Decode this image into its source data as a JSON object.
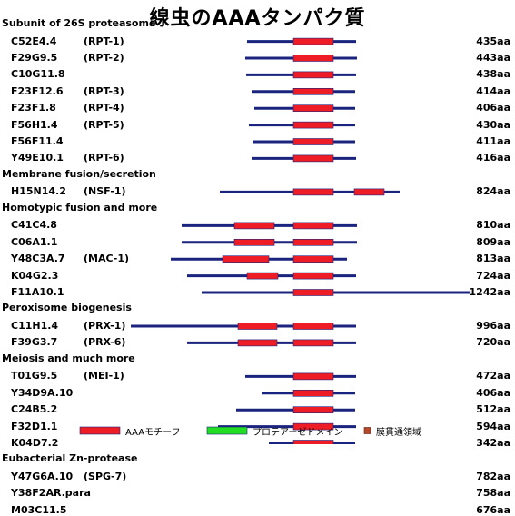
{
  "title": "線虫のAAAタンパク質",
  "colors": {
    "backbone": "#1a237e",
    "aaa": "#ee1c24",
    "protease": "#22dd22",
    "tm": "#b5482a"
  },
  "sections": [
    {
      "label": "Subunit of 26S proteasome",
      "proteins": [
        {
          "gene": "C52E4.4",
          "alias": "(RPT-1)",
          "length": "435aa",
          "start": 272,
          "end": 392,
          "domains": [
            {
              "type": "aaa",
              "from": 323,
              "to": 367
            }
          ]
        },
        {
          "gene": "F29G9.5",
          "alias": "(RPT-2)",
          "length": "443aa",
          "start": 270,
          "end": 393,
          "domains": [
            {
              "type": "aaa",
              "from": 323,
              "to": 367
            }
          ]
        },
        {
          "gene": "C10G11.8",
          "alias": "",
          "length": "438aa",
          "start": 271,
          "end": 392,
          "domains": [
            {
              "type": "aaa",
              "from": 323,
              "to": 367
            }
          ]
        },
        {
          "gene": "F23F12.6",
          "alias": "(RPT-3)",
          "length": "414aa",
          "start": 277,
          "end": 391,
          "domains": [
            {
              "type": "aaa",
              "from": 323,
              "to": 367
            }
          ]
        },
        {
          "gene": "F23F1.8",
          "alias": "(RPT-4)",
          "length": "406aa",
          "start": 280,
          "end": 391,
          "domains": [
            {
              "type": "aaa",
              "from": 323,
              "to": 367
            }
          ]
        },
        {
          "gene": "F56H1.4",
          "alias": "(RPT-5)",
          "length": "430aa",
          "start": 274,
          "end": 391,
          "domains": [
            {
              "type": "aaa",
              "from": 323,
              "to": 367
            }
          ]
        },
        {
          "gene": "F56F11.4",
          "alias": "",
          "length": "411aa",
          "start": 278,
          "end": 391,
          "domains": [
            {
              "type": "aaa",
              "from": 323,
              "to": 367
            }
          ]
        },
        {
          "gene": "Y49E10.1",
          "alias": "(RPT-6)",
          "length": "416aa",
          "start": 277,
          "end": 392,
          "domains": [
            {
              "type": "aaa",
              "from": 323,
              "to": 367
            }
          ]
        }
      ]
    },
    {
      "label": "Membrane fusion/secretion",
      "proteins": [
        {
          "gene": "H15N14.2",
          "alias": "(NSF-1)",
          "length": "824aa",
          "start": 242,
          "end": 440,
          "domains": [
            {
              "type": "aaa",
              "from": 323,
              "to": 367
            },
            {
              "type": "aaa",
              "from": 390,
              "to": 423
            }
          ]
        }
      ]
    },
    {
      "label": "Homotypic fusion and more",
      "proteins": [
        {
          "gene": "C41C4.8",
          "alias": "",
          "length": "810aa",
          "start": 200,
          "end": 393,
          "domains": [
            {
              "type": "aaa",
              "from": 258,
              "to": 302
            },
            {
              "type": "aaa",
              "from": 323,
              "to": 367
            }
          ]
        },
        {
          "gene": "C06A1.1",
          "alias": "",
          "length": "809aa",
          "start": 200,
          "end": 393,
          "domains": [
            {
              "type": "aaa",
              "from": 258,
              "to": 302
            },
            {
              "type": "aaa",
              "from": 323,
              "to": 367
            }
          ]
        },
        {
          "gene": "Y48C3A.7",
          "alias": "(MAC-1)",
          "length": "813aa",
          "start": 188,
          "end": 382,
          "domains": [
            {
              "type": "aaa",
              "from": 245,
              "to": 296
            },
            {
              "type": "aaa",
              "from": 323,
              "to": 367
            }
          ]
        },
        {
          "gene": "K04G2.3",
          "alias": "",
          "length": "724aa",
          "start": 206,
          "end": 392,
          "domains": [
            {
              "type": "aaa",
              "from": 272,
              "to": 306
            },
            {
              "type": "aaa",
              "from": 323,
              "to": 367
            }
          ]
        },
        {
          "gene": "F11A10.1",
          "alias": "",
          "length": "1242aa",
          "start": 222,
          "end": 518,
          "domains": [
            {
              "type": "aaa",
              "from": 323,
              "to": 367
            }
          ]
        }
      ]
    },
    {
      "label": "Peroxisome biogenesis",
      "proteins": [
        {
          "gene": "C11H1.4",
          "alias": "(PRX-1)",
          "length": "996aa",
          "start": 144,
          "end": 392,
          "domains": [
            {
              "type": "aaa",
              "from": 262,
              "to": 305
            },
            {
              "type": "aaa",
              "from": 323,
              "to": 367
            }
          ]
        },
        {
          "gene": "F39G3.7",
          "alias": "(PRX-6)",
          "length": "720aa",
          "start": 206,
          "end": 392,
          "domains": [
            {
              "type": "aaa",
              "from": 262,
              "to": 305
            },
            {
              "type": "aaa",
              "from": 323,
              "to": 367
            }
          ]
        }
      ]
    },
    {
      "label": "Meiosis and much more",
      "proteins": [
        {
          "gene": "T01G9.5",
          "alias": "(MEI-1)",
          "length": "472aa",
          "start": 270,
          "end": 392,
          "domains": [
            {
              "type": "aaa",
              "from": 323,
              "to": 367
            }
          ]
        },
        {
          "gene": "Y34D9A.10",
          "alias": "",
          "length": "406aa",
          "start": 288,
          "end": 391,
          "domains": [
            {
              "type": "aaa",
              "from": 323,
              "to": 367
            }
          ]
        },
        {
          "gene": "C24B5.2",
          "alias": "",
          "length": "512aa",
          "start": 260,
          "end": 391,
          "domains": [
            {
              "type": "aaa",
              "from": 323,
              "to": 367
            }
          ]
        },
        {
          "gene": "F32D1.1",
          "alias": "",
          "length": "594aa",
          "start": 240,
          "end": 392,
          "domains": [
            {
              "type": "aaa",
              "from": 323,
              "to": 367
            }
          ]
        },
        {
          "gene": "K04D7.2",
          "alias": "",
          "length": "342aa",
          "start": 296,
          "end": 391,
          "domains": [
            {
              "type": "aaa",
              "from": 323,
              "to": 367
            }
          ]
        }
      ]
    },
    {
      "label": "Eubacterial Zn-protease",
      "proteins": [
        {
          "gene": "Y47G6A.10",
          "alias": "(SPG-7)",
          "length": "782aa",
          "start": 245,
          "end": 432,
          "domains": [
            {
              "type": "tm",
              "from": 272,
              "to": 278
            },
            {
              "type": "tm",
              "from": 298,
              "to": 304
            },
            {
              "type": "aaa",
              "from": 323,
              "to": 369
            },
            {
              "type": "protease",
              "from": 369,
              "to": 419
            }
          ]
        },
        {
          "gene": "Y38F2AR.para",
          "alias": "",
          "length": "758aa",
          "start": 242,
          "end": 432,
          "domains": [
            {
              "type": "tm",
              "from": 272,
              "to": 278
            },
            {
              "type": "tm",
              "from": 298,
              "to": 304
            },
            {
              "type": "aaa",
              "from": 323,
              "to": 369
            },
            {
              "type": "protease",
              "from": 369,
              "to": 419
            }
          ]
        },
        {
          "gene": "M03C11.5",
          "alias": "",
          "length": "676aa",
          "start": 262,
          "end": 429,
          "domains": [
            {
              "type": "tm",
              "from": 285,
              "to": 291
            },
            {
              "type": "aaa",
              "from": 323,
              "to": 369
            },
            {
              "type": "protease",
              "from": 369,
              "to": 419
            }
          ]
        }
      ]
    }
  ],
  "legend": {
    "aaa": "AAAモチーフ",
    "protease": "プロテアーゼドメイン",
    "tm": "膜貫通領域"
  }
}
